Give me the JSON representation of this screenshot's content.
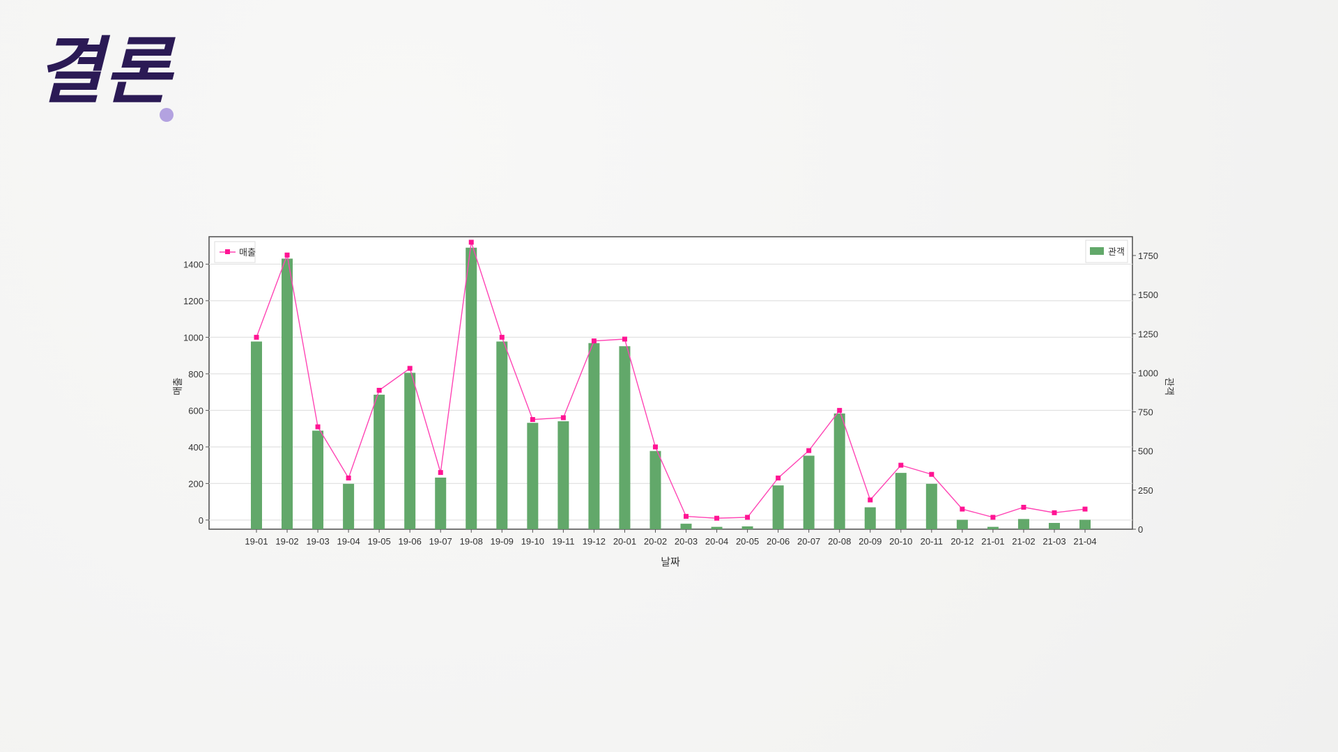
{
  "slide": {
    "title": "결론",
    "accent_color": "#b3a2e0",
    "title_color": "#2b1a55"
  },
  "chart_data": {
    "type": "bar+line",
    "categories": [
      "19-01",
      "19-02",
      "19-03",
      "19-04",
      "19-05",
      "19-06",
      "19-07",
      "19-08",
      "19-09",
      "19-10",
      "19-11",
      "19-12",
      "20-01",
      "20-02",
      "20-03",
      "20-04",
      "20-05",
      "20-06",
      "20-07",
      "20-08",
      "20-09",
      "20-10",
      "20-11",
      "20-12",
      "21-01",
      "21-02",
      "21-03",
      "21-04"
    ],
    "xlabel": "날짜",
    "bar_series": {
      "name": "관객",
      "axis": "right",
      "color": "#62a86a",
      "values": [
        1200,
        1730,
        630,
        290,
        860,
        1000,
        330,
        1800,
        1200,
        680,
        690,
        1190,
        1170,
        500,
        35,
        15,
        18,
        280,
        470,
        740,
        140,
        360,
        290,
        60,
        15,
        65,
        40,
        60
      ]
    },
    "line_series": {
      "name": "매출",
      "axis": "left",
      "color": "#ff44b4",
      "values": [
        1000,
        1450,
        510,
        230,
        710,
        830,
        260,
        1520,
        1000,
        550,
        560,
        980,
        990,
        400,
        20,
        10,
        15,
        230,
        380,
        600,
        110,
        300,
        250,
        60,
        15,
        70,
        40,
        60
      ]
    },
    "left_axis": {
      "label": "매출",
      "ticks": [
        0,
        200,
        400,
        600,
        800,
        1000,
        1200,
        1400
      ],
      "range": [
        -50,
        1550
      ]
    },
    "right_axis": {
      "label": "관객",
      "ticks": [
        0,
        250,
        500,
        750,
        1000,
        1250,
        1500,
        1750
      ],
      "range": [
        0,
        1870
      ]
    },
    "legend_left": "매출",
    "legend_right": "관객",
    "legend_left_position": "top-left",
    "legend_right_position": "top-right",
    "grid": "horizontal"
  }
}
